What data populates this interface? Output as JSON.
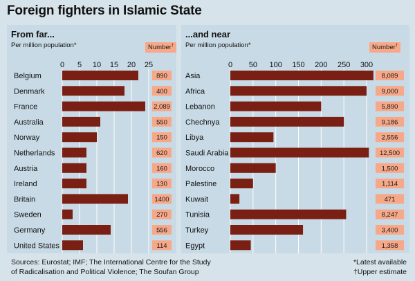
{
  "title": "Foreign fighters in Islamic State",
  "number_label": "Number",
  "number_mark": "†",
  "source": [
    "Sources: Eurostat; IMF; The International Centre for the Study",
    "of Radicalisation and Political Violence; The Soufan Group"
  ],
  "notes": [
    "*Latest available",
    "†Upper estimate"
  ],
  "colors": {
    "bar": "#7a1f14",
    "badge": "#f6a889",
    "panel": "#c8dae5",
    "background": "#d6e3ea"
  },
  "chart_data": [
    {
      "type": "bar",
      "orientation": "horizontal",
      "title": "From far...",
      "subtitle": "Per million population*",
      "categories": [
        "Belgium",
        "Denmark",
        "France",
        "Australia",
        "Norway",
        "Netherlands",
        "Austria",
        "Ireland",
        "Britain",
        "Sweden",
        "Germany",
        "United States"
      ],
      "values": [
        22.0,
        18.0,
        24.0,
        11.0,
        10.0,
        7.0,
        7.0,
        7.0,
        19.0,
        3.0,
        14.0,
        6.0
      ],
      "numbers": [
        "890",
        "400",
        "2,089",
        "550",
        "150",
        "620",
        "160",
        "130",
        "1400",
        "270",
        "556",
        "114"
      ],
      "xlim": [
        0,
        25
      ],
      "xticks": [
        0,
        5,
        10,
        15,
        20,
        25
      ],
      "grid": true
    },
    {
      "type": "bar",
      "orientation": "horizontal",
      "title": "...and near",
      "subtitle": "Per million population*",
      "categories": [
        "Asia",
        "Africa",
        "Lebanon",
        "Chechnya",
        "Libya",
        "Saudi Arabia",
        "Morocco",
        "Palestine",
        "Kuwait",
        "Tunisia",
        "Turkey",
        "Egypt"
      ],
      "values": [
        315,
        300,
        200,
        250,
        95,
        305,
        100,
        50,
        20,
        255,
        160,
        45
      ],
      "numbers": [
        "8,089",
        "9,000",
        "5,890",
        "9,186",
        "2,556",
        "12,500",
        "1,500",
        "1,114",
        "471",
        "8,247",
        "3,400",
        "1,358"
      ],
      "xlim": [
        0,
        300
      ],
      "xticks": [
        0,
        50,
        100,
        150,
        200,
        250,
        300
      ],
      "grid": true
    }
  ]
}
